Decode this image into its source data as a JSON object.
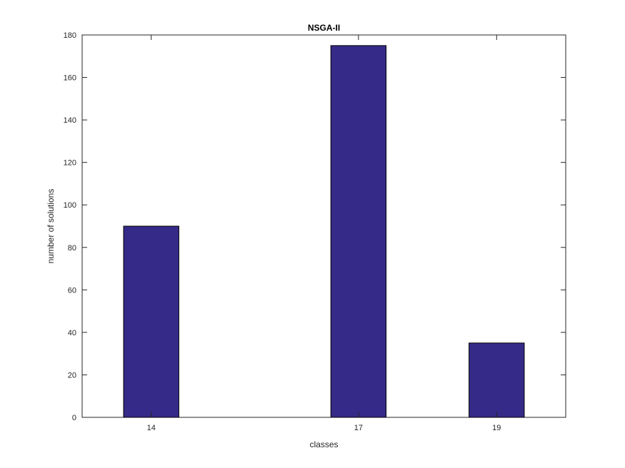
{
  "chart_data": {
    "type": "bar",
    "title": "NSGA-II",
    "xlabel": "classes",
    "ylabel": "number of solutions",
    "x": [
      14,
      17,
      19
    ],
    "categories": [
      "14",
      "17",
      "19"
    ],
    "values": [
      90,
      175,
      35
    ],
    "xlim": [
      13,
      20
    ],
    "ylim": [
      0,
      180
    ],
    "yticks": [
      0,
      20,
      40,
      60,
      80,
      100,
      120,
      140,
      160,
      180
    ],
    "yticks_text": [
      "0",
      "20",
      "40",
      "60",
      "80",
      "100",
      "120",
      "140",
      "160",
      "180"
    ],
    "grid": false,
    "legend": "none",
    "colors": {
      "bar_fill": "#352A87",
      "bar_edge": "#000000",
      "axes": "#262626"
    }
  }
}
